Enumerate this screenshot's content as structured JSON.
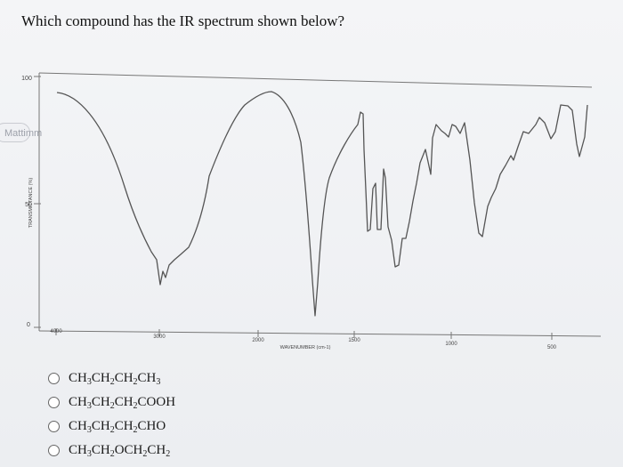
{
  "question": "Which compound has the IR spectrum shown below?",
  "side_tab_label": "Mattimm",
  "spectrum": {
    "y_ticks": [
      "100",
      "50",
      "0"
    ],
    "y_label": "TRANSMITTANCE (%)",
    "x_ticks": [
      "4000",
      "3000",
      "2000",
      "1500",
      "1000",
      "500"
    ],
    "x_label": "WAVENUMBER (cm-1)"
  },
  "options": [
    {
      "parts": [
        "CH",
        "3",
        "CH",
        "2",
        "CH",
        "2",
        "CH",
        "3"
      ]
    },
    {
      "parts": [
        "CH",
        "3",
        "CH",
        "2",
        "CH",
        "2",
        "COOH"
      ]
    },
    {
      "parts": [
        "CH",
        "3",
        "CH",
        "2",
        "CH",
        "2",
        "CHO"
      ]
    },
    {
      "parts": [
        "CH",
        "3",
        "CH",
        "2",
        "OCH",
        "2",
        "CH",
        "2"
      ]
    }
  ]
}
